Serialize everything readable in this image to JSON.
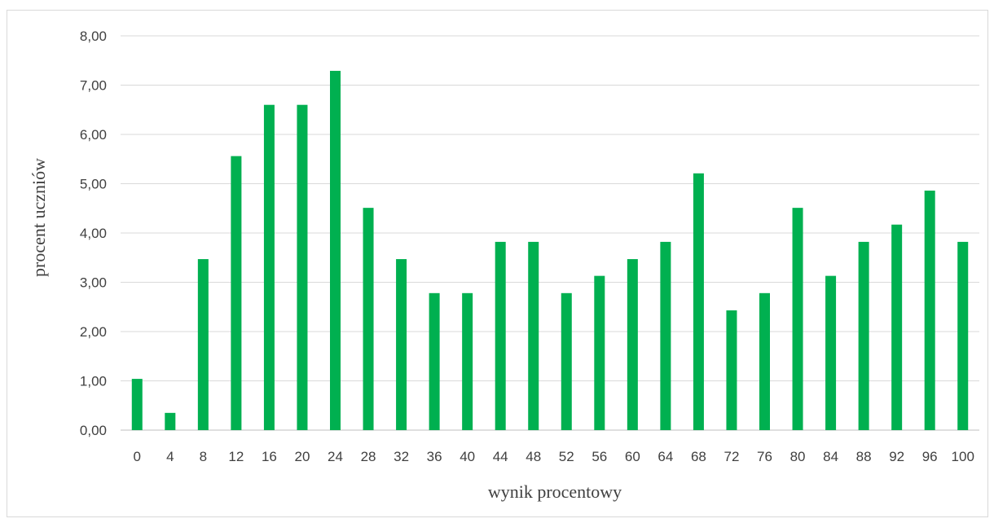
{
  "chart_data": {
    "type": "bar",
    "xlabel": "wynik procentowy",
    "ylabel": "procent uczniów",
    "ylim": [
      0,
      8
    ],
    "y_ticks": [
      "0,00",
      "1,00",
      "2,00",
      "3,00",
      "4,00",
      "5,00",
      "6,00",
      "7,00",
      "8,00"
    ],
    "grid": true,
    "bar_color": "#00b050",
    "categories": [
      "0",
      "4",
      "8",
      "12",
      "16",
      "20",
      "24",
      "28",
      "32",
      "36",
      "40",
      "44",
      "48",
      "52",
      "56",
      "60",
      "64",
      "68",
      "72",
      "76",
      "80",
      "84",
      "88",
      "92",
      "96",
      "100"
    ],
    "values": [
      1.04,
      0.35,
      3.47,
      5.56,
      6.6,
      6.6,
      7.29,
      4.51,
      3.47,
      2.78,
      2.78,
      3.82,
      3.82,
      2.78,
      3.13,
      3.47,
      3.82,
      5.21,
      2.43,
      2.78,
      4.51,
      3.13,
      3.82,
      4.17,
      4.86,
      3.82
    ]
  }
}
